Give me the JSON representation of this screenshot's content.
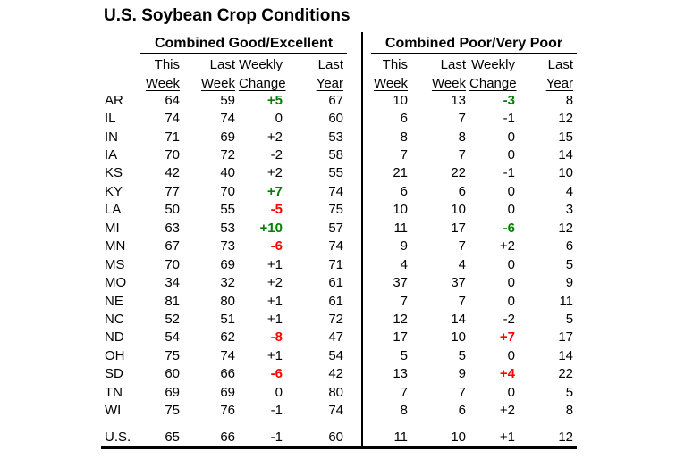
{
  "title": "U.S. Soybean Crop Conditions",
  "colors": {
    "green": "#008000",
    "red": "#ff0000",
    "text": "#000000",
    "background": "#ffffff"
  },
  "chart_data": {
    "type": "table",
    "title": "U.S. Soybean Crop Conditions",
    "sections": [
      {
        "label": "Combined Good/Excellent",
        "columns": [
          {
            "line1": "This",
            "line2": "Week"
          },
          {
            "line1": "Last",
            "line2": "Week"
          },
          {
            "line1": "Weekly",
            "line2": "Change"
          },
          {
            "line1": "Last",
            "line2": "Year"
          }
        ]
      },
      {
        "label": "Combined Poor/Very Poor",
        "columns": [
          {
            "line1": "This",
            "line2": "Week"
          },
          {
            "line1": "Last",
            "line2": "Week"
          },
          {
            "line1": "Weekly",
            "line2": "Change"
          },
          {
            "line1": "Last",
            "line2": "Year"
          }
        ]
      }
    ],
    "rows": [
      {
        "state": "AR",
        "good": {
          "this_week": "64",
          "last_week": "59",
          "change": "+5",
          "change_color": "green",
          "last_year": "67"
        },
        "poor": {
          "this_week": "10",
          "last_week": "13",
          "change": "-3",
          "change_color": "green",
          "last_year": "8"
        }
      },
      {
        "state": "IL",
        "good": {
          "this_week": "74",
          "last_week": "74",
          "change": "0",
          "change_color": "black",
          "last_year": "60"
        },
        "poor": {
          "this_week": "6",
          "last_week": "7",
          "change": "-1",
          "change_color": "black",
          "last_year": "12"
        }
      },
      {
        "state": "IN",
        "good": {
          "this_week": "71",
          "last_week": "69",
          "change": "+2",
          "change_color": "black",
          "last_year": "53"
        },
        "poor": {
          "this_week": "8",
          "last_week": "8",
          "change": "0",
          "change_color": "black",
          "last_year": "15"
        }
      },
      {
        "state": "IA",
        "good": {
          "this_week": "70",
          "last_week": "72",
          "change": "-2",
          "change_color": "black",
          "last_year": "58"
        },
        "poor": {
          "this_week": "7",
          "last_week": "7",
          "change": "0",
          "change_color": "black",
          "last_year": "14"
        }
      },
      {
        "state": "KS",
        "good": {
          "this_week": "42",
          "last_week": "40",
          "change": "+2",
          "change_color": "black",
          "last_year": "55"
        },
        "poor": {
          "this_week": "21",
          "last_week": "22",
          "change": "-1",
          "change_color": "black",
          "last_year": "10"
        }
      },
      {
        "state": "KY",
        "good": {
          "this_week": "77",
          "last_week": "70",
          "change": "+7",
          "change_color": "green",
          "last_year": "74"
        },
        "poor": {
          "this_week": "6",
          "last_week": "6",
          "change": "0",
          "change_color": "black",
          "last_year": "4"
        }
      },
      {
        "state": "LA",
        "good": {
          "this_week": "50",
          "last_week": "55",
          "change": "-5",
          "change_color": "red",
          "last_year": "75"
        },
        "poor": {
          "this_week": "10",
          "last_week": "10",
          "change": "0",
          "change_color": "black",
          "last_year": "3"
        }
      },
      {
        "state": "MI",
        "good": {
          "this_week": "63",
          "last_week": "53",
          "change": "+10",
          "change_color": "green",
          "last_year": "57"
        },
        "poor": {
          "this_week": "11",
          "last_week": "17",
          "change": "-6",
          "change_color": "green",
          "last_year": "12"
        }
      },
      {
        "state": "MN",
        "good": {
          "this_week": "67",
          "last_week": "73",
          "change": "-6",
          "change_color": "red",
          "last_year": "74"
        },
        "poor": {
          "this_week": "9",
          "last_week": "7",
          "change": "+2",
          "change_color": "black",
          "last_year": "6"
        }
      },
      {
        "state": "MS",
        "good": {
          "this_week": "70",
          "last_week": "69",
          "change": "+1",
          "change_color": "black",
          "last_year": "71"
        },
        "poor": {
          "this_week": "4",
          "last_week": "4",
          "change": "0",
          "change_color": "black",
          "last_year": "5"
        }
      },
      {
        "state": "MO",
        "good": {
          "this_week": "34",
          "last_week": "32",
          "change": "+2",
          "change_color": "black",
          "last_year": "61"
        },
        "poor": {
          "this_week": "37",
          "last_week": "37",
          "change": "0",
          "change_color": "black",
          "last_year": "9"
        }
      },
      {
        "state": "NE",
        "good": {
          "this_week": "81",
          "last_week": "80",
          "change": "+1",
          "change_color": "black",
          "last_year": "61"
        },
        "poor": {
          "this_week": "7",
          "last_week": "7",
          "change": "0",
          "change_color": "black",
          "last_year": "11"
        }
      },
      {
        "state": "NC",
        "good": {
          "this_week": "52",
          "last_week": "51",
          "change": "+1",
          "change_color": "black",
          "last_year": "72"
        },
        "poor": {
          "this_week": "12",
          "last_week": "14",
          "change": "-2",
          "change_color": "black",
          "last_year": "5"
        }
      },
      {
        "state": "ND",
        "good": {
          "this_week": "54",
          "last_week": "62",
          "change": "-8",
          "change_color": "red",
          "last_year": "47"
        },
        "poor": {
          "this_week": "17",
          "last_week": "10",
          "change": "+7",
          "change_color": "red",
          "last_year": "17"
        }
      },
      {
        "state": "OH",
        "good": {
          "this_week": "75",
          "last_week": "74",
          "change": "+1",
          "change_color": "black",
          "last_year": "54"
        },
        "poor": {
          "this_week": "5",
          "last_week": "5",
          "change": "0",
          "change_color": "black",
          "last_year": "14"
        }
      },
      {
        "state": "SD",
        "good": {
          "this_week": "60",
          "last_week": "66",
          "change": "-6",
          "change_color": "red",
          "last_year": "42"
        },
        "poor": {
          "this_week": "13",
          "last_week": "9",
          "change": "+4",
          "change_color": "red",
          "last_year": "22"
        }
      },
      {
        "state": "TN",
        "good": {
          "this_week": "69",
          "last_week": "69",
          "change": "0",
          "change_color": "black",
          "last_year": "80"
        },
        "poor": {
          "this_week": "7",
          "last_week": "7",
          "change": "0",
          "change_color": "black",
          "last_year": "5"
        }
      },
      {
        "state": "WI",
        "good": {
          "this_week": "75",
          "last_week": "76",
          "change": "-1",
          "change_color": "black",
          "last_year": "74"
        },
        "poor": {
          "this_week": "8",
          "last_week": "6",
          "change": "+2",
          "change_color": "black",
          "last_year": "8"
        }
      }
    ],
    "total": {
      "state": "U.S.",
      "good": {
        "this_week": "65",
        "last_week": "66",
        "change": "-1",
        "change_color": "black",
        "last_year": "60"
      },
      "poor": {
        "this_week": "11",
        "last_week": "10",
        "change": "+1",
        "change_color": "black",
        "last_year": "12"
      }
    }
  }
}
